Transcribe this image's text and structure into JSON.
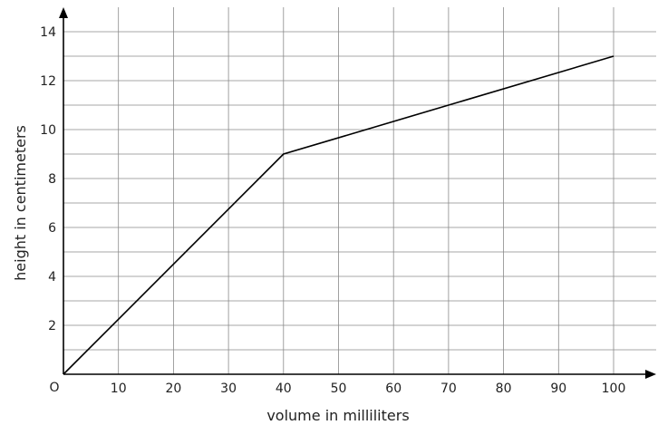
{
  "chart_data": {
    "type": "line",
    "title": "",
    "xlabel": "volume in milliliters",
    "ylabel": "height in centimeters",
    "origin_label": "O",
    "xlim": [
      0,
      108
    ],
    "ylim": [
      0,
      14.8
    ],
    "x_ticks": [
      10,
      20,
      30,
      40,
      50,
      60,
      70,
      80,
      90,
      100
    ],
    "y_ticks": [
      2,
      4,
      6,
      8,
      10,
      12,
      14
    ],
    "x_grid_step": 10,
    "y_grid_step": 1,
    "grid": true,
    "series": [
      {
        "x": [
          0,
          40,
          100
        ],
        "y": [
          0,
          9,
          13
        ],
        "color": "#000000"
      }
    ]
  }
}
